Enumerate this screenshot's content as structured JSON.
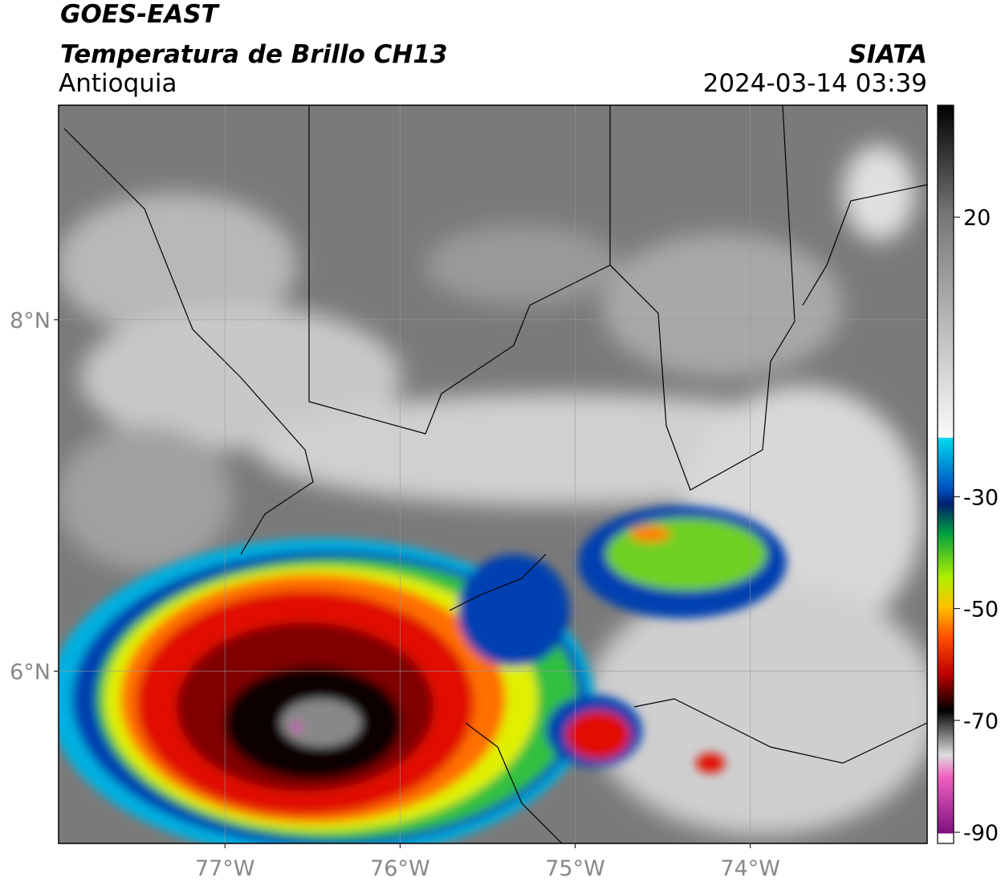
{
  "header": {
    "title": "GOES-EAST",
    "subtitle": "Temperatura de Brillo CH13",
    "region": "Antioquia",
    "source": "SIATA",
    "datetime": "2024-03-14 03:39"
  },
  "map": {
    "lonlim": [
      -77.95,
      -72.99
    ],
    "latlim": [
      5.02,
      9.22
    ],
    "lonticks": [
      {
        "value": -77,
        "label": "77°W"
      },
      {
        "value": -76,
        "label": "76°W"
      },
      {
        "value": -75,
        "label": "75°W"
      },
      {
        "value": -74,
        "label": "74°W"
      }
    ],
    "latticks": [
      {
        "value": 8,
        "label": "8°N"
      },
      {
        "value": 6,
        "label": "6°N"
      }
    ],
    "grid": true
  },
  "colorbar": {
    "lim": [
      -92,
      40
    ],
    "ticks": [
      20,
      -30,
      -50,
      -70,
      -90
    ]
  }
}
